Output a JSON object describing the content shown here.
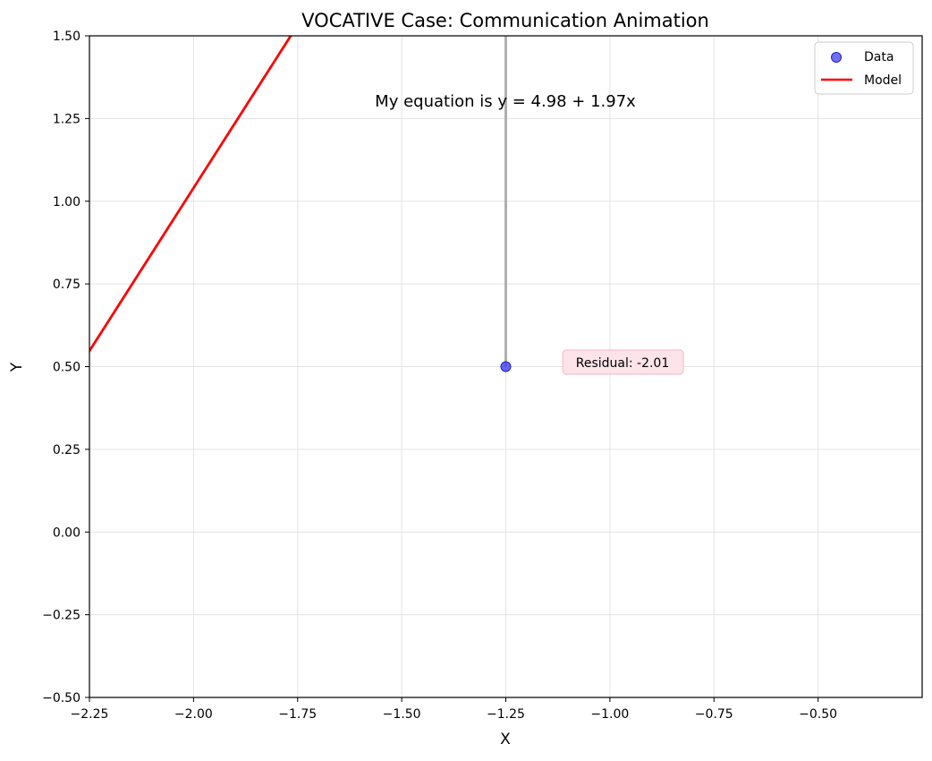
{
  "chart_data": {
    "type": "scatter",
    "title": "VOCATIVE Case: Communication Animation",
    "xlabel": "X",
    "ylabel": "Y",
    "xlim": [
      -2.25,
      -0.25
    ],
    "ylim": [
      -0.5,
      1.5
    ],
    "x_ticks": [
      -2.25,
      -2.0,
      -1.75,
      -1.5,
      -1.25,
      -1.0,
      -0.75,
      -0.5
    ],
    "x_tick_labels": [
      "−2.25",
      "−2.00",
      "−1.75",
      "−1.50",
      "−1.25",
      "−1.00",
      "−0.75",
      "−0.50"
    ],
    "y_ticks": [
      -0.5,
      -0.25,
      0.0,
      0.25,
      0.5,
      0.75,
      1.0,
      1.25,
      1.5
    ],
    "y_tick_labels": [
      "−0.50",
      "−0.25",
      "0.00",
      "0.25",
      "0.50",
      "0.75",
      "1.00",
      "1.25",
      "1.50"
    ],
    "grid": true,
    "legend_position": "top-right",
    "series": [
      {
        "name": "Data",
        "kind": "scatter",
        "color": "#4040ee",
        "points": [
          {
            "x": -1.25,
            "y": 0.5
          }
        ]
      },
      {
        "name": "Model",
        "kind": "line",
        "color": "#ff0000",
        "intercept": 4.98,
        "slope": 1.97
      }
    ],
    "residual_line": {
      "x": -1.25,
      "y_from": 0.5,
      "y_to": 2.52,
      "color": "#b0b0b0"
    },
    "annotations": {
      "equation": "My equation is y = 4.98 + 1.97x",
      "residual": "Residual: -2.01"
    }
  }
}
